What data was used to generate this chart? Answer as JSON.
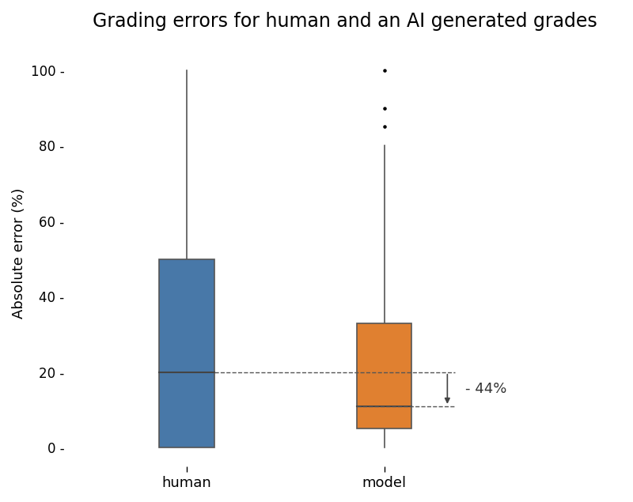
{
  "title": "Grading errors for human and an AI generated grades",
  "ylabel": "Absolute error (%)",
  "categories": [
    "human",
    "model"
  ],
  "human_box": {
    "q1": 0,
    "median": 20,
    "q3": 50,
    "whisker_low": 0,
    "whisker_high": 100,
    "fliers": [],
    "color": "#4878a8"
  },
  "model_box": {
    "q1": 5,
    "median": 11,
    "q3": 33,
    "whisker_low": 0,
    "whisker_high": 80,
    "fliers": [
      85,
      90,
      100
    ],
    "color": "#e08030"
  },
  "annotation_text": "- 44%",
  "human_median": 20,
  "model_median": 11,
  "ylim": [
    -5,
    108
  ],
  "yticks": [
    0,
    20,
    40,
    60,
    80,
    100
  ],
  "xlim": [
    0.4,
    3.2
  ],
  "positions": [
    1,
    2
  ],
  "box_width": 0.28,
  "background_color": "#ffffff",
  "title_fontsize": 17,
  "label_fontsize": 13,
  "tick_fontsize": 12
}
